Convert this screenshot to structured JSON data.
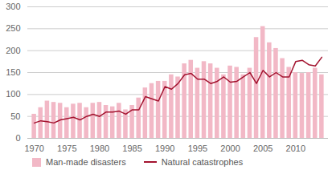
{
  "chart_data": {
    "type": "bar",
    "x": [
      1970,
      1971,
      1972,
      1973,
      1974,
      1975,
      1976,
      1977,
      1978,
      1979,
      1980,
      1981,
      1982,
      1983,
      1984,
      1985,
      1986,
      1987,
      1988,
      1989,
      1990,
      1991,
      1992,
      1993,
      1994,
      1995,
      1996,
      1997,
      1998,
      1999,
      2000,
      2001,
      2002,
      2003,
      2004,
      2005,
      2006,
      2007,
      2008,
      2009,
      2010,
      2011,
      2012,
      2013,
      2014
    ],
    "series": [
      {
        "name": "Man-made disasters",
        "type": "bar",
        "color": "#f2b8c6",
        "values": [
          55,
          70,
          85,
          82,
          80,
          70,
          78,
          80,
          70,
          80,
          82,
          75,
          72,
          80,
          65,
          75,
          92,
          115,
          125,
          130,
          130,
          145,
          140,
          170,
          178,
          160,
          175,
          170,
          160,
          145,
          165,
          162,
          145,
          160,
          230,
          255,
          218,
          205,
          182,
          162,
          150,
          148,
          150,
          160,
          145
        ]
      },
      {
        "name": "Natural catastrophes",
        "type": "line",
        "color": "#a3132f",
        "values": [
          35,
          40,
          38,
          35,
          42,
          45,
          48,
          42,
          50,
          55,
          50,
          60,
          60,
          62,
          55,
          65,
          65,
          95,
          90,
          85,
          118,
          112,
          125,
          145,
          148,
          135,
          135,
          125,
          130,
          140,
          128,
          130,
          140,
          150,
          125,
          155,
          140,
          150,
          140,
          140,
          175,
          178,
          168,
          165,
          185
        ]
      }
    ],
    "xlim": [
      1969,
      2015
    ],
    "xticks": [
      1970,
      1975,
      1980,
      1985,
      1990,
      1995,
      2000,
      2005,
      2010
    ],
    "ylim": [
      0,
      300
    ],
    "yticks": [
      0,
      50,
      100,
      150,
      200,
      250,
      300
    ],
    "grid": true,
    "legend": "bottom"
  }
}
